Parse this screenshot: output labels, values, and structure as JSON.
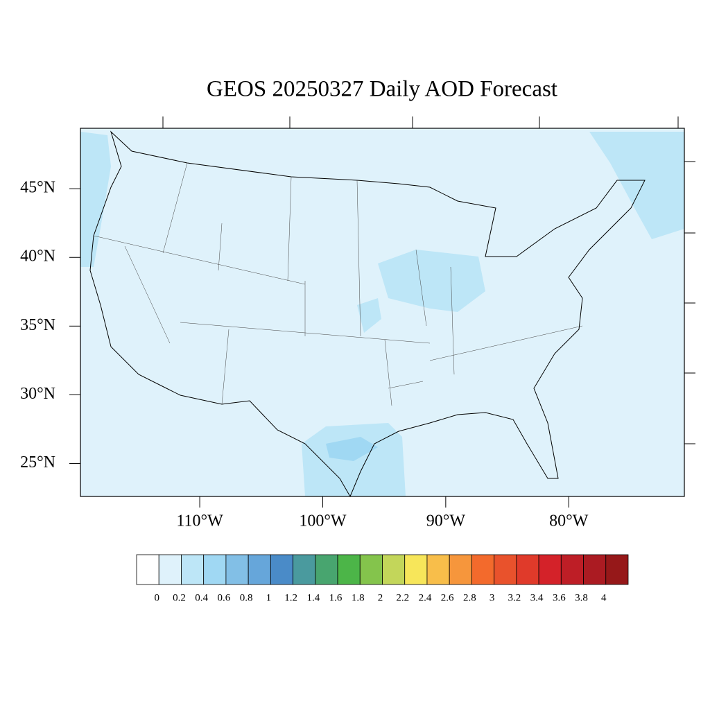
{
  "map": {
    "title": "GEOS 20250327 Daily AOD Forecast",
    "lon_range": [
      -119.7,
      -70.6
    ],
    "lat_range": [
      22.6,
      49.4
    ],
    "lat_ticks": [
      {
        "value": 45,
        "label": "45°N"
      },
      {
        "value": 40,
        "label": "40°N"
      },
      {
        "value": 35,
        "label": "35°N"
      },
      {
        "value": 30,
        "label": "30°N"
      },
      {
        "value": 25,
        "label": "25°N"
      }
    ],
    "lon_ticks": [
      {
        "value": -110,
        "label": "110°W"
      },
      {
        "value": -100,
        "label": "100°W"
      },
      {
        "value": -90,
        "label": "90°W"
      },
      {
        "value": -80,
        "label": "80°W"
      }
    ],
    "colorbar": {
      "levels": [
        0,
        0.2,
        0.4,
        0.6,
        0.8,
        1,
        1.2,
        1.4,
        1.6,
        1.8,
        2,
        2.2,
        2.4,
        2.6,
        2.8,
        3,
        3.2,
        3.4,
        3.6,
        3.8,
        4
      ],
      "colors": [
        "#ffffff",
        "#dff2fb",
        "#bde6f7",
        "#a0d8f3",
        "#82bfe6",
        "#66a6da",
        "#4a8bc8",
        "#4a9a9e",
        "#48a56f",
        "#4cb548",
        "#84c44c",
        "#c3d65a",
        "#f7e65a",
        "#f8be4a",
        "#f6963c",
        "#f36a2c",
        "#e9522c",
        "#e03a2a",
        "#d42229",
        "#be1e26",
        "#ab1b22",
        "#961819"
      ]
    }
  }
}
